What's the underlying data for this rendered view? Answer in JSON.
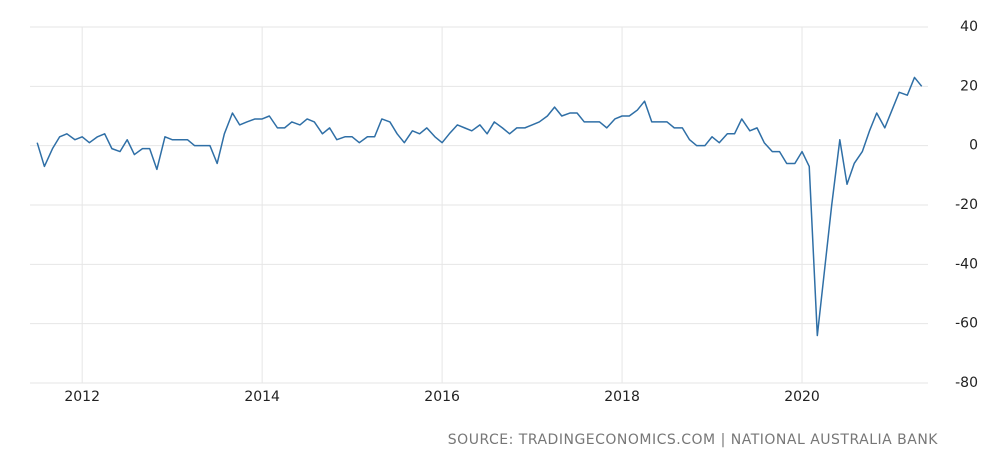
{
  "chart_data": {
    "type": "line",
    "source": "SOURCE: TRADINGECONOMICS.COM | NATIONAL AUSTRALIA BANK",
    "x": [
      2011.5,
      2011.58,
      2011.67,
      2011.75,
      2011.83,
      2011.92,
      2012,
      2012.08,
      2012.17,
      2012.25,
      2012.33,
      2012.42,
      2012.5,
      2012.58,
      2012.67,
      2012.75,
      2012.83,
      2012.92,
      2013,
      2013.08,
      2013.17,
      2013.25,
      2013.33,
      2013.42,
      2013.5,
      2013.58,
      2013.67,
      2013.75,
      2013.83,
      2013.92,
      2014,
      2014.08,
      2014.17,
      2014.25,
      2014.33,
      2014.42,
      2014.5,
      2014.58,
      2014.67,
      2014.75,
      2014.83,
      2014.92,
      2015,
      2015.08,
      2015.17,
      2015.25,
      2015.33,
      2015.42,
      2015.5,
      2015.58,
      2015.67,
      2015.75,
      2015.83,
      2015.92,
      2016,
      2016.08,
      2016.17,
      2016.25,
      2016.33,
      2016.42,
      2016.5,
      2016.58,
      2016.67,
      2016.75,
      2016.83,
      2016.92,
      2017,
      2017.08,
      2017.17,
      2017.25,
      2017.33,
      2017.42,
      2017.5,
      2017.58,
      2017.67,
      2017.75,
      2017.83,
      2017.92,
      2018,
      2018.08,
      2018.17,
      2018.25,
      2018.33,
      2018.42,
      2018.5,
      2018.58,
      2018.67,
      2018.75,
      2018.83,
      2018.92,
      2019,
      2019.08,
      2019.17,
      2019.25,
      2019.33,
      2019.42,
      2019.5,
      2019.58,
      2019.67,
      2019.75,
      2019.83,
      2019.92,
      2020,
      2020.08,
      2020.17,
      2020.25,
      2020.33,
      2020.42,
      2020.5,
      2020.58,
      2020.67,
      2020.75,
      2020.83,
      2020.92,
      2021,
      2021.08,
      2021.17,
      2021.25,
      2021.33
    ],
    "series": [
      {
        "color": "#2f6fa6",
        "values": [
          1,
          -7,
          -1,
          3,
          4,
          2,
          3,
          1,
          3,
          4,
          -1,
          -2,
          2,
          -3,
          -1,
          -1,
          -8,
          3,
          2,
          2,
          2,
          0,
          0,
          0,
          -6,
          4,
          11,
          7,
          8,
          9,
          9,
          10,
          6,
          6,
          8,
          7,
          9,
          8,
          4,
          6,
          2,
          3,
          3,
          1,
          3,
          3,
          9,
          8,
          4,
          1,
          5,
          4,
          6,
          3,
          1,
          4,
          7,
          6,
          5,
          7,
          4,
          8,
          6,
          4,
          6,
          6,
          7,
          8,
          10,
          13,
          10,
          11,
          11,
          8,
          8,
          8,
          6,
          9,
          10,
          10,
          12,
          15,
          8,
          8,
          8,
          6,
          6,
          2,
          0,
          0,
          3,
          1,
          4,
          4,
          9,
          5,
          6,
          1,
          -2,
          -2,
          -6,
          -6,
          -2,
          -7,
          -64,
          -42,
          -20,
          2,
          -13,
          -6,
          -2,
          5,
          11,
          6,
          12,
          18,
          17,
          23,
          20
        ]
      }
    ],
    "xlim": [
      2011.42,
      2021.4
    ],
    "xticks": [
      2012,
      2014,
      2016,
      2018,
      2020
    ],
    "ylim": [
      -80,
      40
    ],
    "yticks": [
      -80,
      -60,
      -40,
      -20,
      0,
      20,
      40
    ],
    "grid": true
  }
}
